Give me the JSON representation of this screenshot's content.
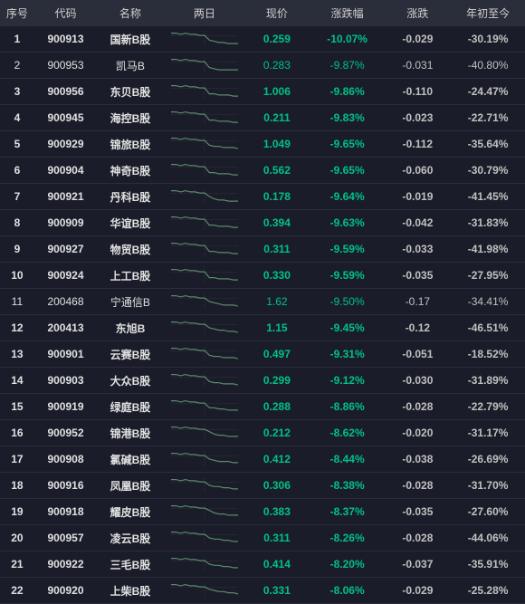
{
  "colors": {
    "background": "#1a1d29",
    "header_bg": "#2a2d3a",
    "text": "#c0c0c0",
    "text_light": "#e0e0e0",
    "green": "#00c087",
    "row_border": "#2a2d3a",
    "spark_line": "#5a8a6a",
    "spark_baseline": "#444"
  },
  "headers": {
    "seq": "序号",
    "code": "代码",
    "name": "名称",
    "twoday": "两日",
    "price": "现价",
    "pct": "涨跌幅",
    "chg": "涨跌",
    "ytd": "年初至今"
  },
  "rows": [
    {
      "seq": "1",
      "code": "900913",
      "name": "国新B股",
      "price": "0.259",
      "pct": "-10.07%",
      "chg": "-0.029",
      "ytd": "-30.19%",
      "spark": [
        12,
        12,
        11,
        12,
        11,
        11,
        10,
        10,
        6,
        5,
        4,
        4,
        3,
        3,
        3
      ],
      "bold": true
    },
    {
      "seq": "2",
      "code": "900953",
      "name": "凯马B",
      "price": "0.283",
      "pct": "-9.87%",
      "chg": "-0.031",
      "ytd": "-40.80%",
      "spark": [
        12,
        12,
        11,
        12,
        11,
        11,
        10,
        10,
        5,
        4,
        3,
        3,
        3,
        3,
        3
      ],
      "bold": false
    },
    {
      "seq": "3",
      "code": "900956",
      "name": "东贝B股",
      "price": "1.006",
      "pct": "-9.86%",
      "chg": "-0.110",
      "ytd": "-24.47%",
      "spark": [
        12,
        12,
        11,
        12,
        11,
        11,
        10,
        10,
        5,
        5,
        4,
        4,
        4,
        3,
        3
      ],
      "bold": true
    },
    {
      "seq": "4",
      "code": "900945",
      "name": "海控B股",
      "price": "0.211",
      "pct": "-9.83%",
      "chg": "-0.023",
      "ytd": "-22.71%",
      "spark": [
        12,
        12,
        11,
        12,
        11,
        11,
        10,
        10,
        5,
        5,
        4,
        4,
        4,
        3,
        3
      ],
      "bold": true
    },
    {
      "seq": "5",
      "code": "900929",
      "name": "锦旅B股",
      "price": "1.049",
      "pct": "-9.65%",
      "chg": "-0.112",
      "ytd": "-35.64%",
      "spark": [
        12,
        12,
        11,
        12,
        11,
        11,
        10,
        10,
        6,
        5,
        5,
        4,
        4,
        4,
        3
      ],
      "bold": true
    },
    {
      "seq": "6",
      "code": "900904",
      "name": "神奇B股",
      "price": "0.562",
      "pct": "-9.65%",
      "chg": "-0.060",
      "ytd": "-30.79%",
      "spark": [
        12,
        12,
        11,
        12,
        11,
        11,
        10,
        10,
        5,
        5,
        4,
        4,
        4,
        3,
        3
      ],
      "bold": true
    },
    {
      "seq": "7",
      "code": "900921",
      "name": "丹科B股",
      "price": "0.178",
      "pct": "-9.64%",
      "chg": "-0.019",
      "ytd": "-41.45%",
      "spark": [
        12,
        12,
        11,
        12,
        11,
        11,
        10,
        10,
        7,
        5,
        4,
        4,
        3,
        3,
        3
      ],
      "bold": true
    },
    {
      "seq": "8",
      "code": "900909",
      "name": "华谊B股",
      "price": "0.394",
      "pct": "-9.63%",
      "chg": "-0.042",
      "ytd": "-31.83%",
      "spark": [
        12,
        12,
        11,
        12,
        11,
        11,
        10,
        10,
        5,
        5,
        4,
        4,
        4,
        3,
        3
      ],
      "bold": true
    },
    {
      "seq": "9",
      "code": "900927",
      "name": "物贸B股",
      "price": "0.311",
      "pct": "-9.59%",
      "chg": "-0.033",
      "ytd": "-41.98%",
      "spark": [
        12,
        12,
        11,
        12,
        11,
        11,
        10,
        10,
        5,
        5,
        4,
        4,
        4,
        3,
        3
      ],
      "bold": true
    },
    {
      "seq": "10",
      "code": "900924",
      "name": "上工B股",
      "price": "0.330",
      "pct": "-9.59%",
      "chg": "-0.035",
      "ytd": "-27.95%",
      "spark": [
        12,
        12,
        11,
        12,
        11,
        11,
        10,
        10,
        5,
        5,
        4,
        4,
        4,
        3,
        3
      ],
      "bold": true
    },
    {
      "seq": "11",
      "code": "200468",
      "name": "宁通信B",
      "price": "1.62",
      "pct": "-9.50%",
      "chg": "-0.17",
      "ytd": "-34.41%",
      "spark": [
        12,
        12,
        11,
        12,
        11,
        11,
        10,
        10,
        7,
        6,
        5,
        4,
        4,
        4,
        3
      ],
      "bold": false
    },
    {
      "seq": "12",
      "code": "200413",
      "name": "东旭B",
      "price": "1.15",
      "pct": "-9.45%",
      "chg": "-0.12",
      "ytd": "-46.51%",
      "spark": [
        12,
        12,
        11,
        12,
        11,
        11,
        10,
        10,
        7,
        6,
        5,
        5,
        4,
        4,
        3
      ],
      "bold": true
    },
    {
      "seq": "13",
      "code": "900901",
      "name": "云赛B股",
      "price": "0.497",
      "pct": "-9.31%",
      "chg": "-0.051",
      "ytd": "-18.52%",
      "spark": [
        12,
        12,
        11,
        12,
        11,
        11,
        10,
        10,
        6,
        5,
        5,
        4,
        4,
        4,
        3
      ],
      "bold": true
    },
    {
      "seq": "14",
      "code": "900903",
      "name": "大众B股",
      "price": "0.299",
      "pct": "-9.12%",
      "chg": "-0.030",
      "ytd": "-31.89%",
      "spark": [
        12,
        12,
        11,
        12,
        11,
        11,
        10,
        10,
        6,
        5,
        5,
        4,
        4,
        4,
        3
      ],
      "bold": true
    },
    {
      "seq": "15",
      "code": "900919",
      "name": "绿庭B股",
      "price": "0.288",
      "pct": "-8.86%",
      "chg": "-0.028",
      "ytd": "-22.79%",
      "spark": [
        12,
        12,
        11,
        12,
        11,
        11,
        10,
        10,
        6,
        6,
        5,
        5,
        4,
        4,
        4
      ],
      "bold": true
    },
    {
      "seq": "16",
      "code": "900952",
      "name": "锦港B股",
      "price": "0.212",
      "pct": "-8.62%",
      "chg": "-0.020",
      "ytd": "-31.17%",
      "spark": [
        12,
        12,
        11,
        12,
        11,
        11,
        10,
        10,
        8,
        6,
        5,
        5,
        4,
        4,
        4
      ],
      "bold": true
    },
    {
      "seq": "17",
      "code": "900908",
      "name": "氯碱B股",
      "price": "0.412",
      "pct": "-8.44%",
      "chg": "-0.038",
      "ytd": "-26.69%",
      "spark": [
        12,
        12,
        11,
        12,
        11,
        11,
        10,
        10,
        7,
        6,
        5,
        5,
        5,
        4,
        4
      ],
      "bold": true
    },
    {
      "seq": "18",
      "code": "900916",
      "name": "凤凰B股",
      "price": "0.306",
      "pct": "-8.38%",
      "chg": "-0.028",
      "ytd": "-31.70%",
      "spark": [
        12,
        12,
        11,
        12,
        11,
        11,
        10,
        10,
        7,
        6,
        6,
        5,
        5,
        4,
        4
      ],
      "bold": true
    },
    {
      "seq": "19",
      "code": "900918",
      "name": "耀皮B股",
      "price": "0.383",
      "pct": "-8.37%",
      "chg": "-0.035",
      "ytd": "-27.60%",
      "spark": [
        12,
        12,
        11,
        12,
        11,
        11,
        10,
        10,
        8,
        6,
        5,
        5,
        4,
        4,
        4
      ],
      "bold": true
    },
    {
      "seq": "20",
      "code": "900957",
      "name": "凌云B股",
      "price": "0.311",
      "pct": "-8.26%",
      "chg": "-0.028",
      "ytd": "-44.06%",
      "spark": [
        12,
        12,
        11,
        12,
        11,
        11,
        10,
        10,
        7,
        6,
        6,
        5,
        5,
        4,
        4
      ],
      "bold": true
    },
    {
      "seq": "21",
      "code": "900922",
      "name": "三毛B股",
      "price": "0.414",
      "pct": "-8.20%",
      "chg": "-0.037",
      "ytd": "-35.91%",
      "spark": [
        12,
        12,
        11,
        12,
        11,
        11,
        10,
        10,
        7,
        6,
        6,
        5,
        5,
        4,
        4
      ],
      "bold": true
    },
    {
      "seq": "22",
      "code": "900920",
      "name": "上柴B股",
      "price": "0.331",
      "pct": "-8.06%",
      "chg": "-0.029",
      "ytd": "-25.28%",
      "spark": [
        12,
        12,
        11,
        12,
        11,
        11,
        10,
        10,
        8,
        7,
        6,
        6,
        5,
        5,
        4
      ],
      "bold": true
    }
  ],
  "spark": {
    "width": 74,
    "height": 18,
    "points": 15
  }
}
